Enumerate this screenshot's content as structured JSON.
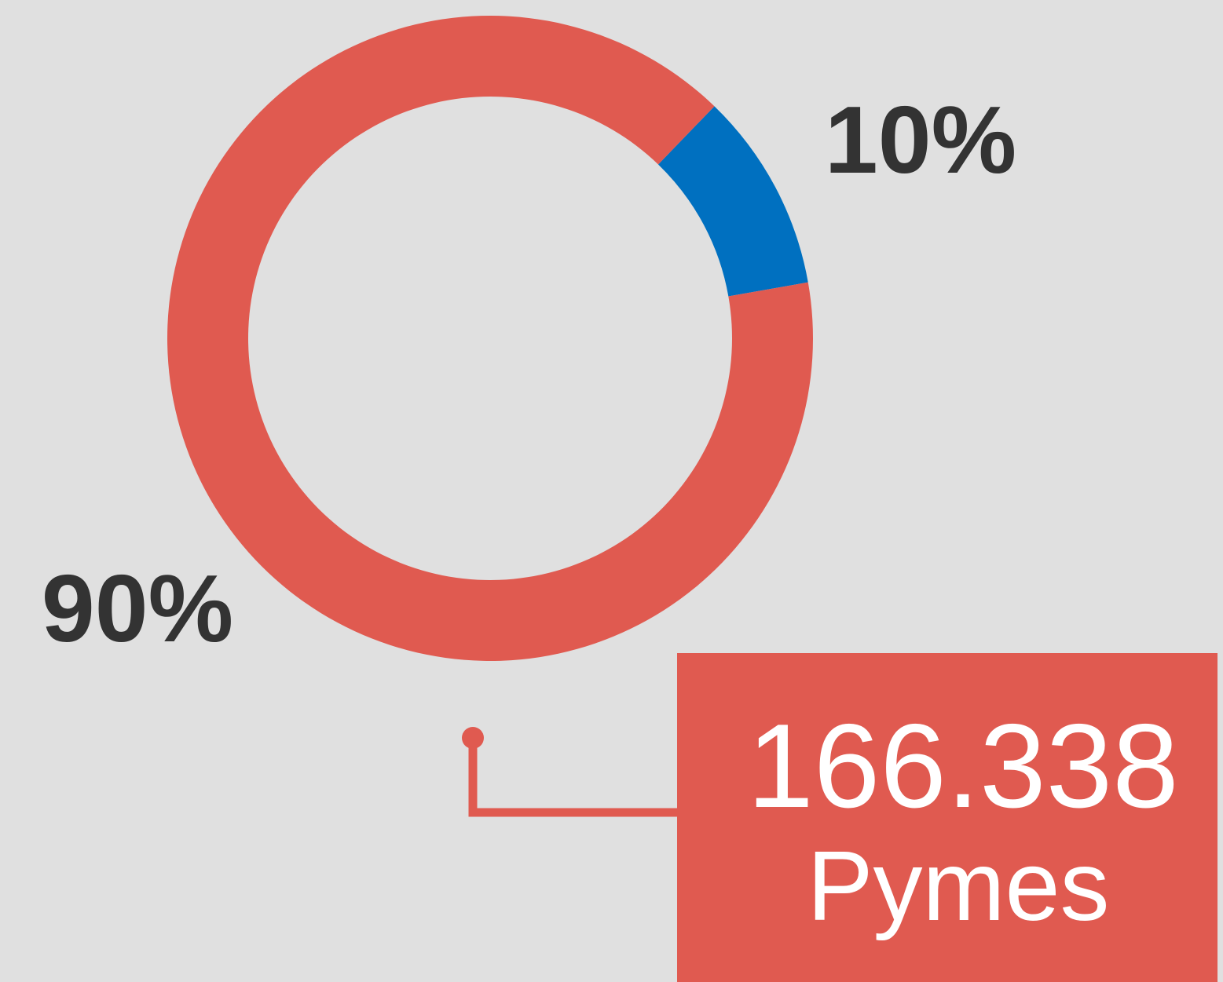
{
  "chart_data": {
    "type": "donut",
    "values": [
      10,
      90
    ],
    "value_labels": [
      "10%",
      "90%"
    ],
    "colors": [
      "#0070c0",
      "#e05a50"
    ],
    "callout": {
      "value": "166.338",
      "label": "Pymes",
      "color": "#e05a50"
    }
  }
}
